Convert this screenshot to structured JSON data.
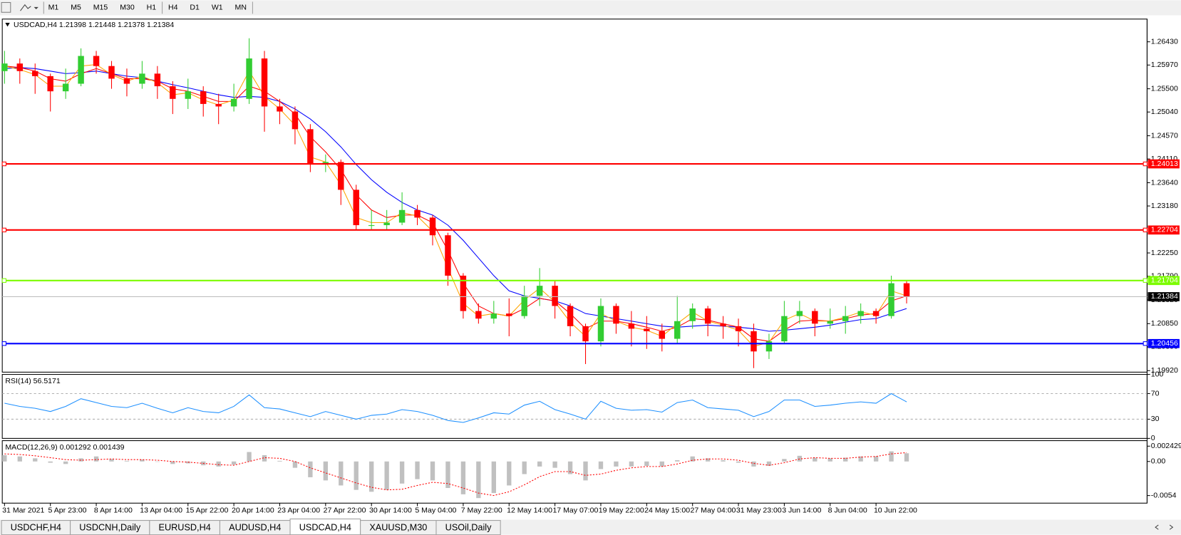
{
  "toolbar": {
    "timeframes": [
      "M1",
      "M5",
      "M15",
      "M30",
      "H1",
      "H4",
      "D1",
      "W1",
      "MN"
    ]
  },
  "tabs": [
    "USDCHF,H4",
    "USDCNH,Daily",
    "EURUSD,H4",
    "AUDUSD,H4",
    "USDCAD,H4",
    "XAUUSD,M30",
    "USOil,Daily"
  ],
  "active_tab": 4,
  "chart_data": [
    {
      "type": "candlestick",
      "title": "USDCAD,H4  1.21398 1.21448 1.21378 1.21384",
      "up_color": "#32cd32",
      "down_color": "#ff0000",
      "categories": [
        "31 Mar 2021",
        null,
        null,
        "5 Apr 23:00",
        null,
        null,
        "8 Apr 14:00",
        null,
        null,
        "13 Apr 04:00",
        null,
        null,
        "15 Apr 22:00",
        null,
        null,
        "20 Apr 14:00",
        null,
        null,
        "23 Apr 04:00",
        null,
        null,
        "27 Apr 22:00",
        null,
        null,
        "30 Apr 14:00",
        null,
        null,
        "5 May 04:00",
        null,
        null,
        "7 May 22:00",
        null,
        null,
        "12 May 14:00",
        null,
        null,
        "17 May 07:00",
        null,
        null,
        "19 May 22:00",
        null,
        null,
        "24 May 15:00",
        null,
        null,
        "27 May 04:00",
        null,
        null,
        "31 May 23:00",
        null,
        null,
        "3 Jun 14:00",
        null,
        null,
        "8 Jun 04:00",
        null,
        null,
        "10 Jun 22:00",
        null,
        null
      ],
      "open": [
        1.2585,
        1.26,
        1.2585,
        1.2575,
        1.2545,
        1.256,
        1.2615,
        1.2595,
        1.257,
        1.256,
        1.258,
        1.2555,
        1.253,
        1.2545,
        1.252,
        1.2515,
        1.253,
        1.261,
        1.2515,
        1.2505,
        1.247,
        1.24,
        1.2405,
        1.235,
        1.228,
        1.228,
        1.2285,
        1.231,
        1.2295,
        1.226,
        1.218,
        1.211,
        1.2095,
        1.2105,
        1.21,
        1.214,
        1.216,
        1.212,
        1.208,
        1.205,
        1.212,
        1.2085,
        1.2075,
        1.207,
        1.2055,
        1.209,
        1.2115,
        1.2085,
        1.208,
        1.207,
        1.203,
        1.205,
        1.21,
        1.211,
        1.2085,
        1.209,
        1.21,
        1.211,
        1.21,
        1.2165
      ],
      "high": [
        1.2625,
        1.261,
        1.26,
        1.258,
        1.259,
        1.263,
        1.2625,
        1.2605,
        1.259,
        1.2605,
        1.2595,
        1.2565,
        1.257,
        1.2555,
        1.254,
        1.256,
        1.265,
        1.2625,
        1.253,
        1.2515,
        1.248,
        1.242,
        1.241,
        1.236,
        1.231,
        1.231,
        1.2345,
        1.232,
        1.23,
        1.2265,
        1.2185,
        1.2125,
        1.213,
        1.2135,
        1.216,
        1.2195,
        1.217,
        1.2125,
        1.2085,
        1.2135,
        1.2125,
        1.211,
        1.21,
        1.2085,
        1.214,
        1.2125,
        1.212,
        1.21,
        1.2095,
        1.2085,
        1.2065,
        1.213,
        1.213,
        1.2115,
        1.2115,
        1.212,
        1.2125,
        1.2115,
        1.218,
        1.217
      ],
      "low": [
        1.256,
        1.256,
        1.254,
        1.2505,
        1.253,
        1.2555,
        1.258,
        1.255,
        1.2535,
        1.255,
        1.253,
        1.25,
        1.251,
        1.2495,
        1.248,
        1.2505,
        1.252,
        1.2465,
        1.248,
        1.244,
        1.2385,
        1.2385,
        1.232,
        1.227,
        1.227,
        1.227,
        1.228,
        1.228,
        1.224,
        1.216,
        1.2095,
        1.2085,
        1.2085,
        1.206,
        1.2095,
        1.212,
        1.2095,
        1.206,
        1.2005,
        1.204,
        1.2065,
        1.204,
        1.2035,
        1.203,
        1.2045,
        1.2075,
        1.206,
        1.2055,
        1.204,
        1.1997,
        1.2015,
        1.2045,
        1.2085,
        1.206,
        1.2075,
        1.2065,
        1.2085,
        1.2085,
        1.2095,
        1.2125
      ],
      "close": [
        1.26,
        1.2585,
        1.2575,
        1.2545,
        1.256,
        1.2615,
        1.2595,
        1.257,
        1.256,
        1.258,
        1.2555,
        1.253,
        1.2545,
        1.252,
        1.2515,
        1.253,
        1.261,
        1.2515,
        1.2505,
        1.247,
        1.24,
        1.2405,
        1.235,
        1.228,
        1.228,
        1.2285,
        1.231,
        1.2295,
        1.226,
        1.218,
        1.211,
        1.2095,
        1.2105,
        1.21,
        1.214,
        1.216,
        1.212,
        1.208,
        1.205,
        1.212,
        1.2085,
        1.2075,
        1.207,
        1.2055,
        1.209,
        1.2115,
        1.2085,
        1.208,
        1.207,
        1.203,
        1.205,
        1.21,
        1.211,
        1.2085,
        1.209,
        1.21,
        1.211,
        1.21,
        1.2165,
        1.2138
      ],
      "series": [
        {
          "color": "#0000ff",
          "values": [
            1.259,
            1.2592,
            1.259,
            1.2585,
            1.258,
            1.2582,
            1.2585,
            1.258,
            1.2575,
            1.2572,
            1.2565,
            1.2558,
            1.2552,
            1.2545,
            1.2538,
            1.2533,
            1.2535,
            1.2533,
            1.2525,
            1.251,
            1.249,
            1.2465,
            1.2435,
            1.24,
            1.237,
            1.2345,
            1.2325,
            1.231,
            1.23,
            1.228,
            1.225,
            1.2215,
            1.218,
            1.215,
            1.214,
            1.2135,
            1.213,
            1.212,
            1.2105,
            1.21,
            1.2095,
            1.209,
            1.2085,
            1.208,
            1.2078,
            1.208,
            1.2082,
            1.208,
            1.2078,
            1.2075,
            1.207,
            1.2072,
            1.2075,
            1.2078,
            1.2082,
            1.2088,
            1.2093,
            1.2095,
            1.2105,
            1.2115
          ]
        },
        {
          "color": "#ff0000",
          "values": [
            1.2595,
            1.2592,
            1.2585,
            1.257,
            1.2565,
            1.258,
            1.259,
            1.258,
            1.257,
            1.257,
            1.2565,
            1.255,
            1.2545,
            1.2535,
            1.2525,
            1.2525,
            1.2555,
            1.2545,
            1.2525,
            1.25,
            1.2455,
            1.2425,
            1.239,
            1.234,
            1.231,
            1.2295,
            1.23,
            1.23,
            1.2285,
            1.223,
            1.2165,
            1.212,
            1.2105,
            1.21,
            1.2115,
            1.2135,
            1.213,
            1.2105,
            1.2075,
            1.209,
            1.209,
            1.2085,
            1.2078,
            1.207,
            1.2078,
            1.2095,
            1.2092,
            1.2085,
            1.2078,
            1.2055,
            1.205,
            1.2072,
            1.209,
            1.2092,
            1.209,
            1.2095,
            1.2102,
            1.2105,
            1.213,
            1.214
          ]
        },
        {
          "color": "#ffa500",
          "values": [
            1.2595,
            1.2588,
            1.2578,
            1.2555,
            1.2555,
            1.2595,
            1.2598,
            1.2578,
            1.2565,
            1.2575,
            1.2562,
            1.2538,
            1.2542,
            1.2528,
            1.2518,
            1.2528,
            1.2585,
            1.2535,
            1.251,
            1.2478,
            1.2415,
            1.2405,
            1.236,
            1.2295,
            1.2285,
            1.2285,
            1.2305,
            1.2298,
            1.2268,
            1.2195,
            1.2125,
            1.21,
            1.2105,
            1.21,
            1.2132,
            1.2155,
            1.2128,
            1.2088,
            1.206,
            1.2105,
            1.209,
            1.2078,
            1.2072,
            1.206,
            1.2085,
            1.2108,
            1.209,
            1.2082,
            1.2072,
            1.204,
            1.2048,
            1.2092,
            1.2105,
            1.209,
            1.209,
            1.2098,
            1.2108,
            1.2102,
            1.215,
            1.214
          ]
        }
      ],
      "levels": [
        {
          "value": 1.24013,
          "color": "#ff0000"
        },
        {
          "value": 1.22704,
          "color": "#ff0000"
        },
        {
          "value": 1.21704,
          "color": "#7cfc00"
        },
        {
          "value": 1.20456,
          "color": "#0000ff"
        }
      ],
      "current_price": 1.21384,
      "ylim": [
        1.1989,
        1.2688
      ],
      "yticks": [
        {
          "value": 1.2643,
          "label": "1.26430"
        },
        {
          "value": 1.2597,
          "label": "1.25970"
        },
        {
          "value": 1.255,
          "label": "1.25500"
        },
        {
          "value": 1.2504,
          "label": "1.25040"
        },
        {
          "value": 1.2457,
          "label": "1.24570"
        },
        {
          "value": 1.2411,
          "label": "1.24110"
        },
        {
          "value": 1.2364,
          "label": "1.23640"
        },
        {
          "value": 1.2318,
          "label": "1.23180"
        },
        {
          "value": 1.2225,
          "label": "1.22250"
        },
        {
          "value": 1.2179,
          "label": "1.21790"
        },
        {
          "value": 1.2132,
          "label": "1.21320"
        },
        {
          "value": 1.2085,
          "label": "1.20850"
        },
        {
          "value": 1.2039,
          "label": "1.20390"
        },
        {
          "value": 1.1992,
          "label": "1.19920"
        }
      ]
    },
    {
      "type": "line",
      "title": "RSI(14) 56.5171",
      "color": "#1e90ff",
      "values": [
        55,
        50,
        47,
        42,
        50,
        62,
        56,
        50,
        48,
        55,
        47,
        40,
        48,
        42,
        40,
        50,
        68,
        48,
        46,
        40,
        34,
        42,
        36,
        30,
        36,
        38,
        45,
        42,
        36,
        28,
        25,
        32,
        40,
        38,
        52,
        58,
        45,
        38,
        30,
        58,
        47,
        44,
        45,
        41,
        56,
        60,
        48,
        46,
        44,
        34,
        42,
        60,
        60,
        50,
        52,
        55,
        57,
        55,
        70,
        57
      ],
      "ylim": [
        0,
        100
      ],
      "yticks": [
        100,
        70,
        30,
        0
      ]
    },
    {
      "type": "macd",
      "title": "MACD(12,26,9) 0.001292 0.001439",
      "hist_color": "#c0c0c0",
      "signal_color": "#ff0000",
      "values": [
        0.001,
        0.0008,
        0.0005,
        -0.0002,
        -0.0004,
        0.0005,
        0.0008,
        0.0004,
        0.0001,
        0.0003,
        0.0,
        -0.0004,
        -0.0003,
        -0.0006,
        -0.0008,
        -0.0005,
        0.0015,
        0.001,
        0.0001,
        -0.001,
        -0.0025,
        -0.003,
        -0.0038,
        -0.0045,
        -0.0048,
        -0.0045,
        -0.0035,
        -0.0028,
        -0.003,
        -0.0042,
        -0.0052,
        -0.0058,
        -0.005,
        -0.0038,
        -0.002,
        -0.0008,
        -0.001,
        -0.002,
        -0.003,
        -0.0012,
        -0.0008,
        -0.0008,
        -0.0007,
        -0.0008,
        0.0002,
        0.0008,
        0.0005,
        0.0002,
        -0.0002,
        -0.0008,
        -0.0007,
        0.0004,
        0.0009,
        0.0006,
        0.0005,
        0.0006,
        0.0008,
        0.0008,
        0.0016,
        0.0013
      ],
      "signal": [
        0.0012,
        0.0011,
        0.0009,
        0.0006,
        0.0003,
        0.0002,
        0.0003,
        0.0004,
        0.0003,
        0.0003,
        0.0002,
        0.0,
        -0.0001,
        -0.0003,
        -0.0005,
        -0.0006,
        0.0,
        0.0006,
        0.0005,
        0.0,
        -0.001,
        -0.0018,
        -0.0026,
        -0.0034,
        -0.0041,
        -0.0045,
        -0.0044,
        -0.0038,
        -0.0033,
        -0.0035,
        -0.0042,
        -0.005,
        -0.0054,
        -0.0048,
        -0.0037,
        -0.0024,
        -0.0016,
        -0.0016,
        -0.0022,
        -0.002,
        -0.0014,
        -0.001,
        -0.0008,
        -0.0008,
        -0.0004,
        0.0002,
        0.0004,
        0.0004,
        0.0002,
        -0.0003,
        -0.0006,
        -0.0002,
        0.0004,
        0.0006,
        0.0005,
        0.0005,
        0.0007,
        0.0008,
        0.0012,
        0.0014
      ],
      "ylim": [
        -0.0066,
        0.0033
      ],
      "yticks": [
        0.002429,
        {
          "value": 0,
          "label": "0.00"
        },
        -0.0054
      ]
    }
  ]
}
